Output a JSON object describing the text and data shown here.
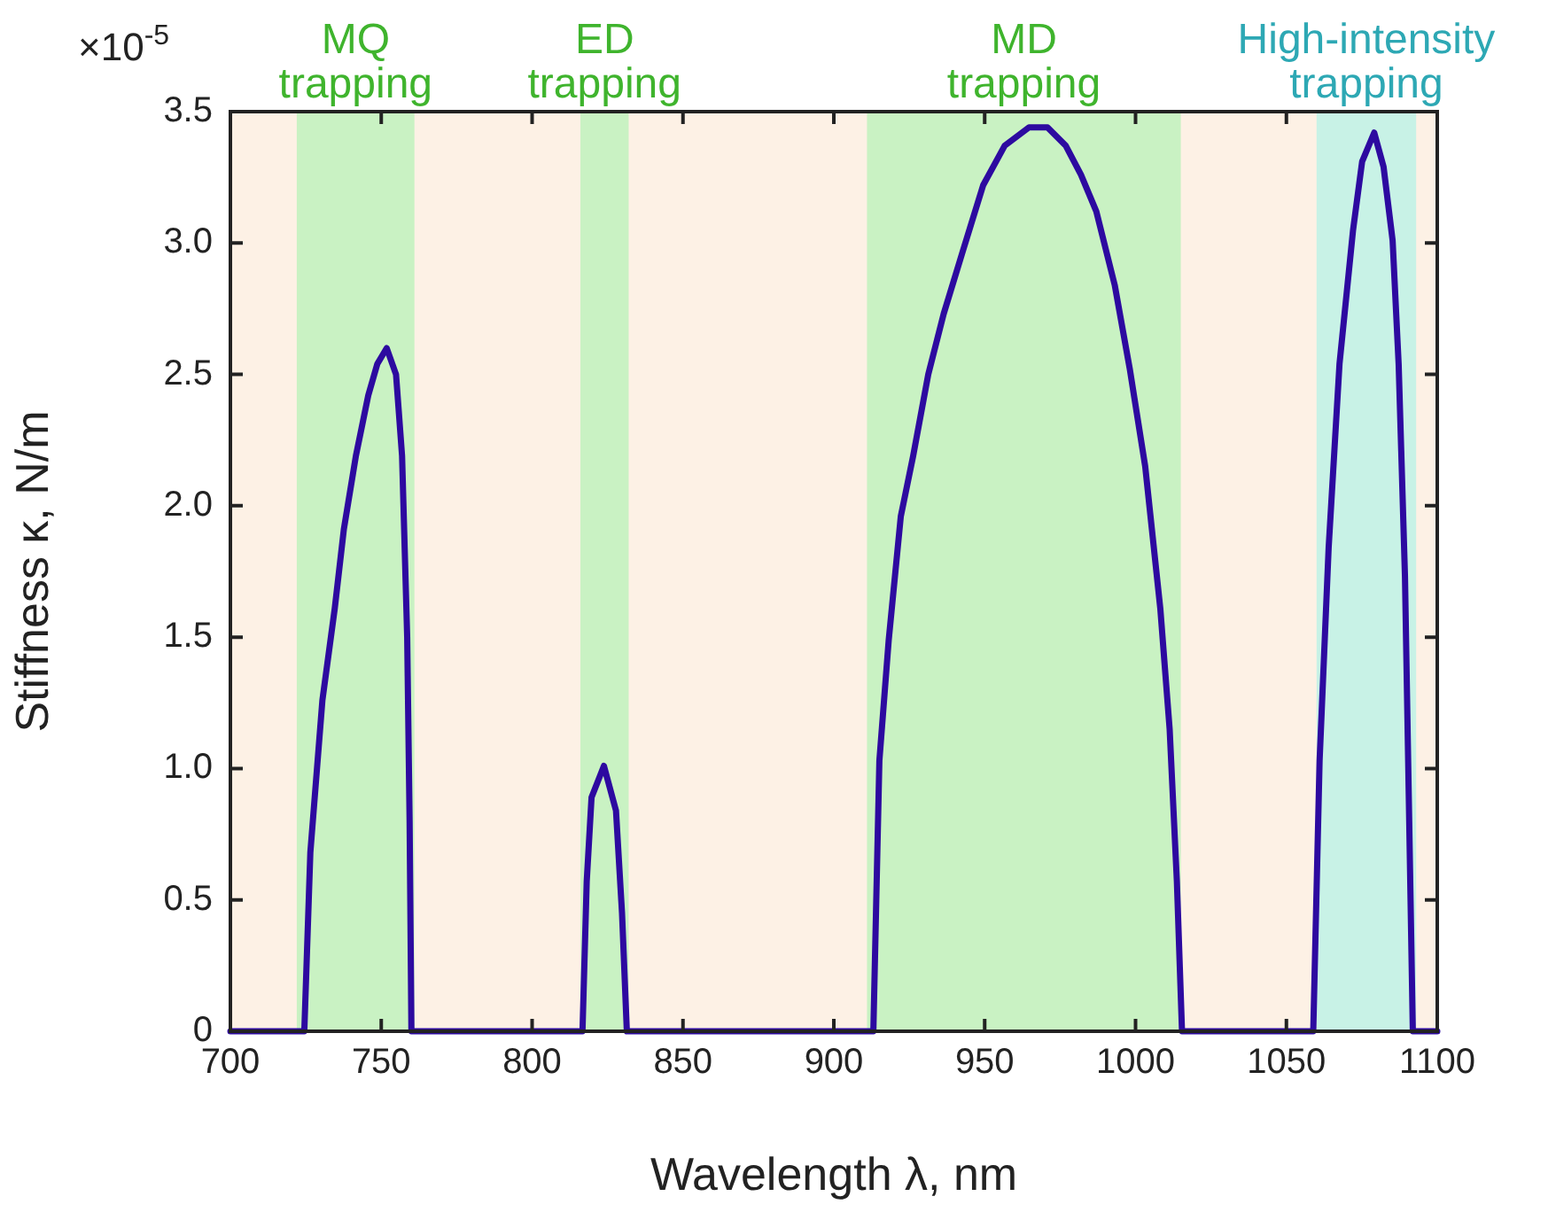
{
  "chart_data": {
    "type": "line",
    "xlabel": "Wavelength λ, nm",
    "ylabel": "Stiffness κ, N/m",
    "annotations": [
      "×10$^{-5}$"
    ],
    "xlim": [
      700,
      1100
    ],
    "xticks": [
      700,
      750,
      800,
      850,
      900,
      950,
      1000,
      1050,
      1100
    ],
    "ylim": [
      0,
      3.5
    ],
    "yticks": [
      0,
      0.5,
      {
        "value": 1,
        "label": "1.0"
      },
      1.5,
      {
        "value": 2,
        "label": "2.0"
      },
      2.5,
      {
        "value": 3,
        "label": "3.0"
      },
      3.5
    ],
    "marker": "none",
    "line_style": "solid",
    "bands": [
      {
        "axis": "x",
        "from": 700,
        "to": 1100,
        "color": "#fdf1e5"
      },
      {
        "axis": "x",
        "from": 722,
        "to": 761,
        "label": "MQ trapping",
        "color": "#c9f2c3"
      },
      {
        "axis": "x",
        "from": 816,
        "to": 832,
        "label": "ED trapping",
        "color": "#c9f2c3"
      },
      {
        "axis": "x",
        "from": 911,
        "to": 1015,
        "label": "MD trapping",
        "color": "#c9f2c3"
      },
      {
        "axis": "x",
        "from": 1060,
        "to": 1093,
        "label": "High-intensity trapping",
        "color": "#c8f2e6"
      }
    ],
    "series": [
      {
        "color": "#2d0aa0",
        "x": [
          700,
          724.5,
          726.5,
          730.5,
          734.6,
          737.6,
          741.6,
          745.7,
          748.7,
          751.8,
          754.9,
          756.9,
          758.6,
          759.4,
          760,
          816.7,
          818.1,
          819.7,
          823.8,
          827.8,
          829.8,
          831.4,
          913.1,
          915.1,
          918.2,
          922.2,
          926.3,
          931.3,
          936.4,
          942.5,
          949.5,
          956.6,
          964.7,
          970.8,
          976.9,
          981.9,
          987,
          993.1,
          998.1,
          1003.2,
          1008.2,
          1011.3,
          1013.7,
          1015.4,
          1058.9,
          1061,
          1064,
          1067.6,
          1072.1,
          1075.1,
          1079.1,
          1082.2,
          1085.2,
          1087.2,
          1089.3,
          1090.7,
          1091.9,
          1100
        ],
        "values": [
          0,
          0,
          0.68,
          1.26,
          1.61,
          1.91,
          2.19,
          2.42,
          2.54,
          2.6,
          2.5,
          2.19,
          1.5,
          0.8,
          0,
          0,
          0.57,
          0.89,
          1.01,
          0.84,
          0.45,
          0,
          0,
          1.03,
          1.49,
          1.96,
          2.19,
          2.5,
          2.73,
          2.96,
          3.22,
          3.37,
          3.44,
          3.44,
          3.37,
          3.26,
          3.12,
          2.84,
          2.52,
          2.15,
          1.61,
          1.15,
          0.57,
          0,
          0,
          1.03,
          1.84,
          2.54,
          3.05,
          3.31,
          3.42,
          3.29,
          3.01,
          2.54,
          1.73,
          0.8,
          0,
          0
        ]
      }
    ]
  }
}
